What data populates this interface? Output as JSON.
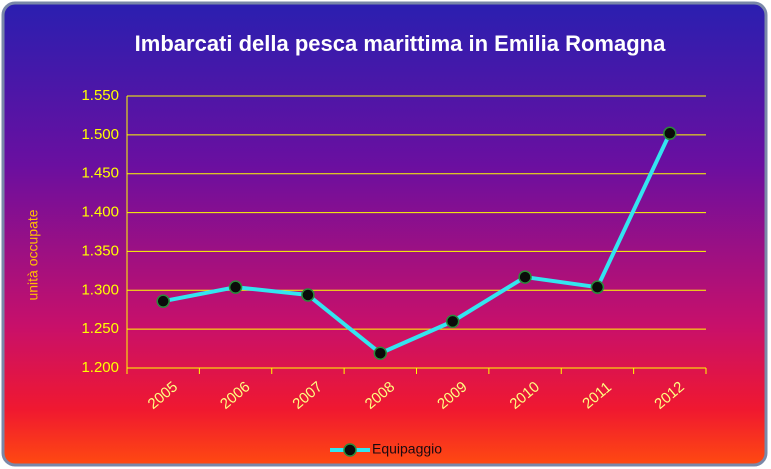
{
  "chart_data": {
    "type": "line",
    "title": "Imbarcati della pesca marittima in Emilia Romagna",
    "ylabel": "unità occupate",
    "categories": [
      "2005",
      "2006",
      "2007",
      "2008",
      "2009",
      "2010",
      "2011",
      "2012"
    ],
    "series": [
      {
        "name": "Equipaggio",
        "color": "#33e5f0",
        "values": [
          1286,
          1304,
          1294,
          1219,
          1260,
          1317,
          1304,
          1502
        ]
      }
    ],
    "ylim": [
      1200,
      1550
    ],
    "yticks": [
      {
        "value": 1200,
        "label": "1.200"
      },
      {
        "value": 1250,
        "label": "1.250"
      },
      {
        "value": 1300,
        "label": "1.300"
      },
      {
        "value": 1350,
        "label": "1.350"
      },
      {
        "value": 1400,
        "label": "1.400"
      },
      {
        "value": 1450,
        "label": "1.450"
      },
      {
        "value": 1500,
        "label": "1.500"
      },
      {
        "value": 1550,
        "label": "1.550"
      }
    ],
    "grid": true,
    "legend": "bottom"
  }
}
